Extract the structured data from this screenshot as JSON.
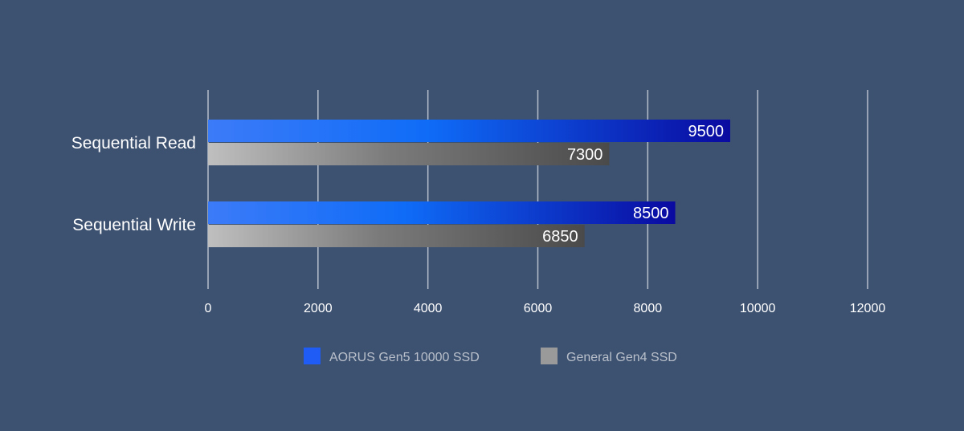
{
  "chart_data": {
    "type": "bar",
    "orientation": "horizontal",
    "categories": [
      "Sequential Read",
      "Sequential Write"
    ],
    "series": [
      {
        "name": "AORUS Gen5 10000 SSD",
        "values": [
          9500,
          8500
        ],
        "color": "#1f5cf5"
      },
      {
        "name": "General Gen4 SSD",
        "values": [
          7300,
          6850
        ],
        "color": "#9a9a9a"
      }
    ],
    "xlim": [
      0,
      12000
    ],
    "xticks": [
      "0",
      "2000",
      "4000",
      "6000",
      "8000",
      "10000",
      "12000"
    ],
    "grid": true,
    "legend_position": "bottom"
  }
}
